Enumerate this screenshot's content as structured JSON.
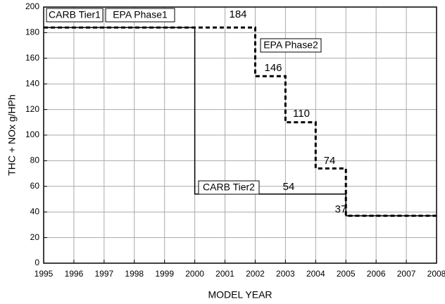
{
  "chart_data": {
    "type": "step",
    "xlabel": "MODEL YEAR",
    "ylabel": "THC + NOx g/HPh",
    "xlim": [
      1995,
      2008
    ],
    "xticks": [
      1995,
      1996,
      1997,
      1998,
      1999,
      2000,
      2001,
      2002,
      2003,
      2004,
      2005,
      2006,
      2007,
      2008
    ],
    "ylim": [
      0,
      200
    ],
    "yticks": [
      0,
      20,
      40,
      60,
      80,
      100,
      120,
      140,
      160,
      180,
      200
    ],
    "grid": true,
    "series": [
      {
        "color": "#000000",
        "style": "solid",
        "x": [
          1995,
          2000,
          2005,
          2008
        ],
        "values": [
          184,
          54,
          37,
          37
        ]
      },
      {
        "color": "#000000",
        "style": "dashed",
        "x": [
          1995,
          2002,
          2003,
          2004,
          2005,
          2008
        ],
        "values": [
          184,
          146,
          110,
          74,
          37,
          37
        ]
      }
    ],
    "annotations": [
      "CARB Tier1",
      "EPA Phase1",
      "EPA Phase2",
      "CARB Tier2"
    ]
  }
}
